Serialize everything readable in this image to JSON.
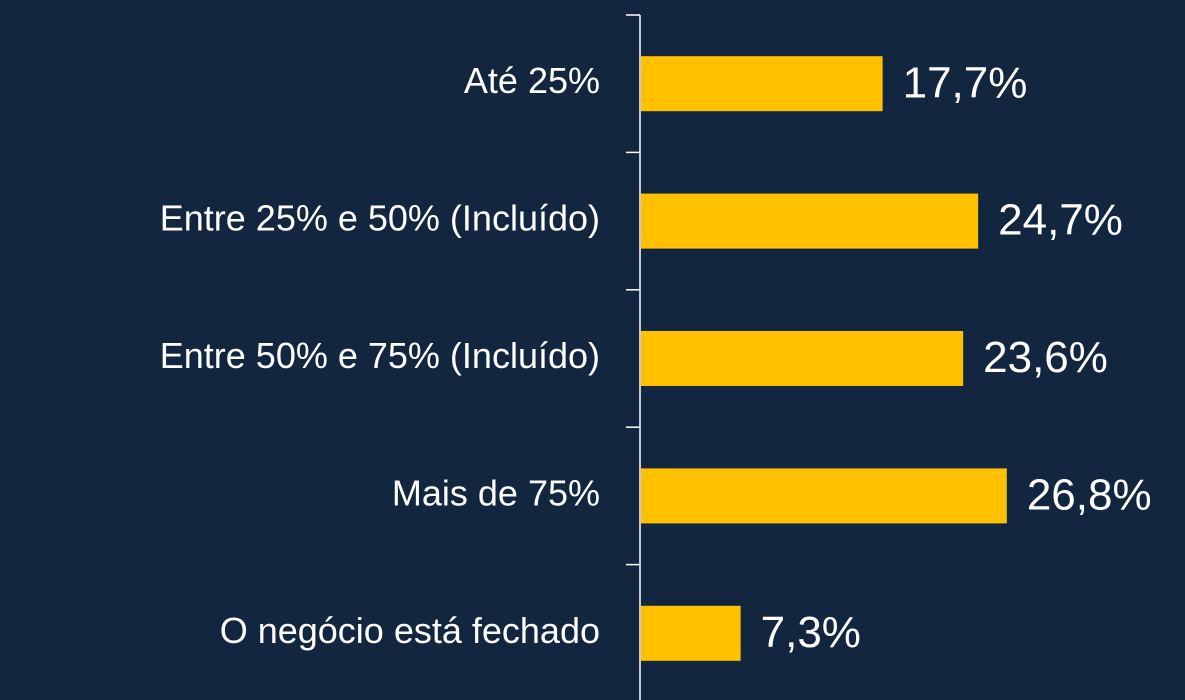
{
  "chart_data": {
    "type": "barh",
    "categories": [
      "Até 25%",
      "Entre 25% e 50% (Incluído)",
      "Entre 50% e 75% (Incluído)",
      "Mais de 75%",
      "O negócio está fechado"
    ],
    "values": [
      17.7,
      24.7,
      23.6,
      26.8,
      7.3
    ],
    "value_labels": [
      "17,7%",
      "24,7%",
      "23,6%",
      "26,8%",
      "7,3%"
    ],
    "color": "#ffc000"
  }
}
